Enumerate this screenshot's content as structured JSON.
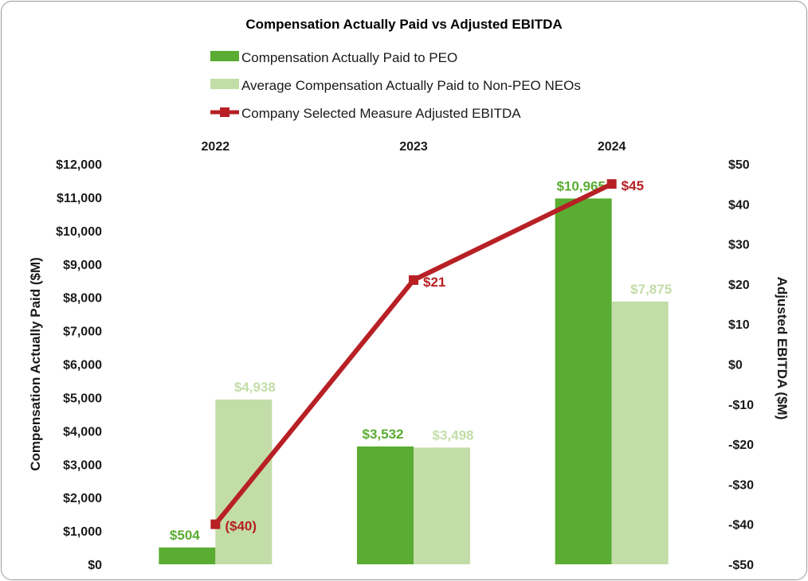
{
  "chart_data": {
    "type": "bar",
    "title": "Compensation Actually Paid vs Adjusted EBITDA",
    "categories": [
      "2022",
      "2023",
      "2024"
    ],
    "ylabel": "Compensation Actually Paid ($M)",
    "y2label": "Adjusted EBITDA ($M)",
    "ylim": [
      0,
      12000
    ],
    "y2lim": [
      -50,
      50
    ],
    "y_ticks": [
      {
        "value": 0,
        "label": "$0"
      },
      {
        "value": 1000,
        "label": "$1,000"
      },
      {
        "value": 2000,
        "label": "$2,000"
      },
      {
        "value": 3000,
        "label": "$3,000"
      },
      {
        "value": 4000,
        "label": "$4,000"
      },
      {
        "value": 5000,
        "label": "$5,000"
      },
      {
        "value": 6000,
        "label": "$6,000"
      },
      {
        "value": 7000,
        "label": "$7,000"
      },
      {
        "value": 8000,
        "label": "$8,000"
      },
      {
        "value": 9000,
        "label": "$9,000"
      },
      {
        "value": 10000,
        "label": "$10,000"
      },
      {
        "value": 11000,
        "label": "$11,000"
      },
      {
        "value": 12000,
        "label": "$12,000"
      }
    ],
    "y2_ticks": [
      {
        "value": -50,
        "label": "-$50"
      },
      {
        "value": -40,
        "label": "-$40"
      },
      {
        "value": -30,
        "label": "-$30"
      },
      {
        "value": -20,
        "label": "-$20"
      },
      {
        "value": -10,
        "label": "-$10"
      },
      {
        "value": 0,
        "label": "$0"
      },
      {
        "value": 10,
        "label": "$10"
      },
      {
        "value": 20,
        "label": "$20"
      },
      {
        "value": 30,
        "label": "$30"
      },
      {
        "value": 40,
        "label": "$40"
      },
      {
        "value": 50,
        "label": "$50"
      }
    ],
    "series": [
      {
        "name": "Compensation Actually Paid to PEO",
        "type": "bar",
        "axis": "left",
        "color": "#5aac32",
        "values": [
          504,
          3532,
          10965
        ],
        "labels": [
          "$504",
          "$3,532",
          "$10,965"
        ]
      },
      {
        "name": "Average Compensation Actually Paid to Non-PEO NEOs",
        "type": "bar",
        "axis": "left",
        "color": "#c2dda8",
        "values": [
          4938,
          3498,
          7875
        ],
        "labels": [
          "$4,938",
          "$3,498",
          "$7,875"
        ]
      },
      {
        "name": "Company Selected Measure Adjusted EBITDA",
        "type": "line",
        "axis": "right",
        "color": "#b72025",
        "values": [
          -40,
          21,
          45
        ],
        "labels": [
          "($40)",
          "$21",
          "$45"
        ]
      }
    ],
    "legend": "top"
  }
}
